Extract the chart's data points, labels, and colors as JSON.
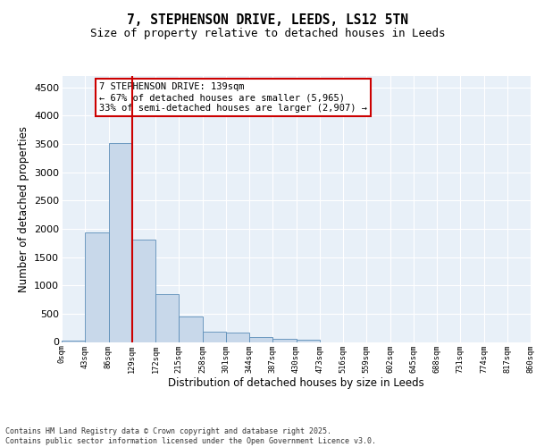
{
  "title": "7, STEPHENSON DRIVE, LEEDS, LS12 5TN",
  "subtitle": "Size of property relative to detached houses in Leeds",
  "xlabel": "Distribution of detached houses by size in Leeds",
  "ylabel": "Number of detached properties",
  "bin_labels": [
    "0sqm",
    "43sqm",
    "86sqm",
    "129sqm",
    "172sqm",
    "215sqm",
    "258sqm",
    "301sqm",
    "344sqm",
    "387sqm",
    "430sqm",
    "473sqm",
    "516sqm",
    "559sqm",
    "602sqm",
    "645sqm",
    "688sqm",
    "731sqm",
    "774sqm",
    "817sqm",
    "860sqm"
  ],
  "bar_values": [
    30,
    1940,
    3520,
    1810,
    850,
    450,
    175,
    170,
    90,
    55,
    35,
    0,
    0,
    0,
    0,
    0,
    0,
    0,
    0,
    0
  ],
  "bar_color": "#c8d8ea",
  "bar_edge_color": "#5b8db8",
  "vline_x": 3,
  "vline_color": "#cc0000",
  "annotation_text": "7 STEPHENSON DRIVE: 139sqm\n← 67% of detached houses are smaller (5,965)\n33% of semi-detached houses are larger (2,907) →",
  "annotation_box_color": "#ffffff",
  "annotation_box_edge": "#cc0000",
  "ylim": [
    0,
    4700
  ],
  "yticks": [
    0,
    500,
    1000,
    1500,
    2000,
    2500,
    3000,
    3500,
    4000,
    4500
  ],
  "bg_color": "#e8f0f8",
  "footer_line1": "Contains HM Land Registry data © Crown copyright and database right 2025.",
  "footer_line2": "Contains public sector information licensed under the Open Government Licence v3.0."
}
